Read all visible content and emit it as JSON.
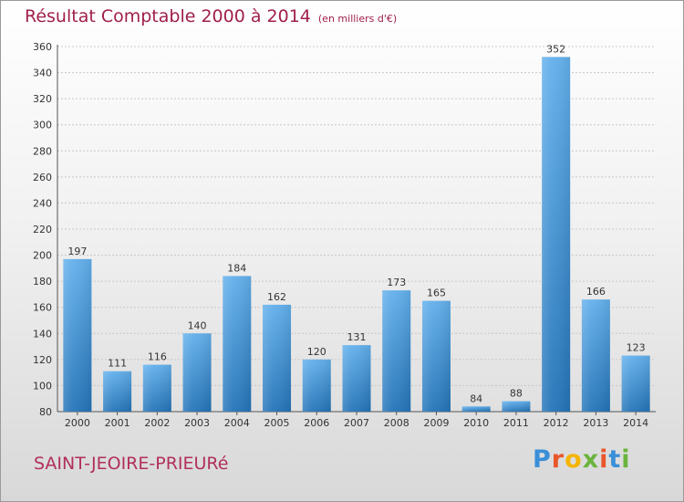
{
  "header": {
    "title": "Résultat Comptable 2000 à 2014",
    "unit": "(en milliers d'€)"
  },
  "footer": {
    "place": "SAINT-JEOIRE-PRIEURé",
    "logo_letters": [
      "P",
      "r",
      "o",
      "x",
      "i",
      "t",
      "i"
    ],
    "logo_colors": [
      "#3a8fd8",
      "#e8572b",
      "#f4b400",
      "#6ab43e",
      "#e8572b",
      "#3a8fd8",
      "#6ab43e"
    ]
  },
  "colors": {
    "title": "#a0204a",
    "bar_top": "#63b0ec",
    "bar_bottom": "#2474b8",
    "grid": "#c8c8c8"
  },
  "chart_data": {
    "type": "bar",
    "title": "Résultat Comptable 2000 à 2014",
    "subtitle": "(en milliers d'€)",
    "xlabel": "",
    "ylabel": "",
    "categories": [
      "2000",
      "2001",
      "2002",
      "2003",
      "2004",
      "2005",
      "2006",
      "2007",
      "2008",
      "2009",
      "2010",
      "2011",
      "2012",
      "2013",
      "2014"
    ],
    "values": [
      197,
      111,
      116,
      140,
      184,
      162,
      120,
      131,
      173,
      165,
      84,
      88,
      352,
      166,
      123
    ],
    "ylim": [
      80,
      360
    ],
    "yticks": [
      80,
      100,
      120,
      140,
      160,
      180,
      200,
      220,
      240,
      260,
      280,
      300,
      320,
      340,
      360
    ],
    "grid": true,
    "legend": "none"
  }
}
